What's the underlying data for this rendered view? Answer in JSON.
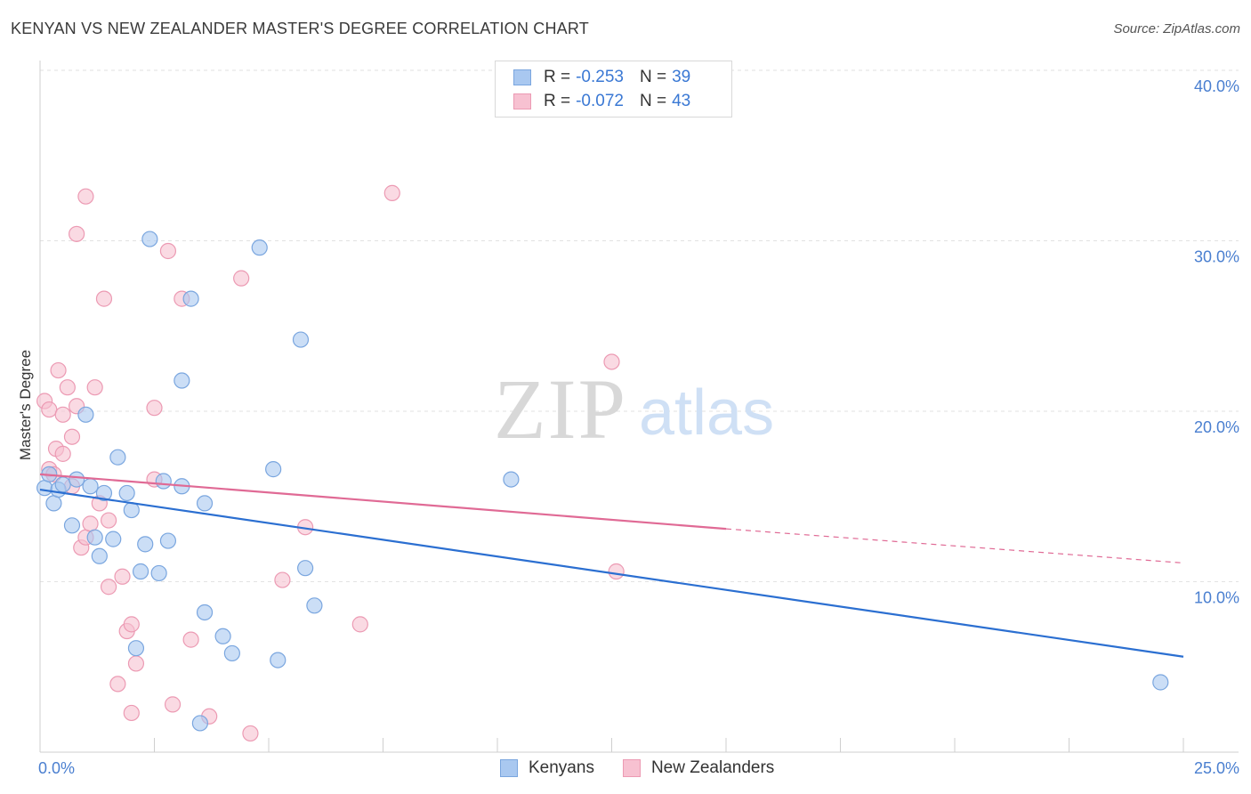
{
  "header": {
    "title": "KENYAN VS NEW ZEALANDER MASTER'S DEGREE CORRELATION CHART",
    "source": "Source: ZipAtlas.com"
  },
  "legend": {
    "rows": [
      {
        "r_label": "R =",
        "r_value": "-0.253",
        "n_label": "N =",
        "n_value": "39"
      },
      {
        "r_label": "R =",
        "r_value": "-0.072",
        "n_label": "N =",
        "n_value": "43"
      }
    ]
  },
  "bottom_legend": [
    "Kenyans",
    "New Zealanders"
  ],
  "watermark": {
    "zip": "ZIP",
    "atlas": "atlas"
  },
  "colors": {
    "blue_fill": "#a9c8f0",
    "blue_stroke": "#7aa6df",
    "blue_line": "#2b6fd1",
    "pink_fill": "#f7c1d1",
    "pink_stroke": "#ec9ab3",
    "pink_line": "#e06a95",
    "tick": "#4a7fd0"
  },
  "chart_data": {
    "type": "scatter",
    "title": "KENYAN VS NEW ZEALANDER MASTER'S DEGREE CORRELATION CHART",
    "xlabel": "",
    "ylabel": "Master's Degree",
    "xlim": [
      0,
      25
    ],
    "ylim": [
      0,
      40
    ],
    "y_ticks": [
      "10.0%",
      "20.0%",
      "30.0%",
      "40.0%"
    ],
    "x_tick_labels": [
      "0.0%",
      "25.0%"
    ],
    "series": [
      {
        "name": "Kenyans",
        "r": -0.253,
        "n": 39,
        "trend": {
          "x0": 0,
          "y0": 15.4,
          "x1": 25,
          "y1": 5.6
        },
        "points": [
          [
            0.1,
            15.5
          ],
          [
            0.2,
            16.3
          ],
          [
            0.3,
            14.6
          ],
          [
            0.4,
            15.4
          ],
          [
            0.5,
            15.7
          ],
          [
            0.7,
            13.3
          ],
          [
            0.8,
            16.0
          ],
          [
            1.0,
            19.8
          ],
          [
            1.1,
            15.6
          ],
          [
            1.2,
            12.6
          ],
          [
            1.3,
            11.5
          ],
          [
            1.4,
            15.2
          ],
          [
            1.6,
            12.5
          ],
          [
            1.7,
            17.3
          ],
          [
            1.9,
            15.2
          ],
          [
            2.0,
            14.2
          ],
          [
            2.1,
            6.1
          ],
          [
            2.2,
            10.6
          ],
          [
            2.3,
            12.2
          ],
          [
            2.4,
            30.1
          ],
          [
            2.6,
            10.5
          ],
          [
            2.7,
            15.9
          ],
          [
            2.8,
            12.4
          ],
          [
            3.1,
            15.6
          ],
          [
            3.3,
            26.6
          ],
          [
            3.1,
            21.8
          ],
          [
            3.6,
            14.6
          ],
          [
            3.5,
            1.7
          ],
          [
            3.6,
            8.2
          ],
          [
            4.0,
            6.8
          ],
          [
            4.2,
            5.8
          ],
          [
            4.8,
            29.6
          ],
          [
            5.1,
            16.6
          ],
          [
            5.2,
            5.4
          ],
          [
            5.7,
            24.2
          ],
          [
            5.8,
            10.8
          ],
          [
            6.0,
            8.6
          ],
          [
            10.3,
            16.0
          ],
          [
            24.5,
            4.1
          ]
        ]
      },
      {
        "name": "New Zealanders",
        "r": -0.072,
        "n": 43,
        "trend": {
          "x0": 0,
          "y0": 16.3,
          "x1": 15,
          "y1": 13.1,
          "dashed_to_x": 25,
          "dashed_to_y": 11.1
        },
        "points": [
          [
            0.1,
            20.6
          ],
          [
            0.2,
            16.6
          ],
          [
            0.2,
            20.1
          ],
          [
            0.3,
            16.3
          ],
          [
            0.35,
            17.8
          ],
          [
            0.4,
            22.4
          ],
          [
            0.5,
            19.8
          ],
          [
            0.5,
            17.5
          ],
          [
            0.6,
            21.4
          ],
          [
            0.7,
            15.6
          ],
          [
            0.7,
            18.5
          ],
          [
            0.8,
            20.3
          ],
          [
            0.8,
            30.4
          ],
          [
            0.9,
            12.0
          ],
          [
            1.0,
            32.6
          ],
          [
            1.0,
            12.6
          ],
          [
            1.1,
            13.4
          ],
          [
            1.2,
            21.4
          ],
          [
            1.3,
            14.6
          ],
          [
            1.4,
            26.6
          ],
          [
            1.5,
            13.6
          ],
          [
            1.5,
            9.7
          ],
          [
            1.7,
            4.0
          ],
          [
            1.8,
            10.3
          ],
          [
            1.9,
            7.1
          ],
          [
            2.0,
            7.5
          ],
          [
            2.0,
            2.3
          ],
          [
            2.1,
            5.2
          ],
          [
            2.5,
            20.2
          ],
          [
            2.5,
            16.0
          ],
          [
            2.8,
            29.4
          ],
          [
            2.9,
            2.8
          ],
          [
            3.1,
            26.6
          ],
          [
            3.3,
            6.6
          ],
          [
            3.7,
            2.1
          ],
          [
            4.4,
            27.8
          ],
          [
            4.6,
            1.1
          ],
          [
            5.3,
            10.1
          ],
          [
            5.8,
            13.2
          ],
          [
            7.0,
            7.5
          ],
          [
            7.7,
            32.8
          ],
          [
            12.5,
            22.9
          ],
          [
            12.6,
            10.6
          ]
        ]
      }
    ]
  }
}
